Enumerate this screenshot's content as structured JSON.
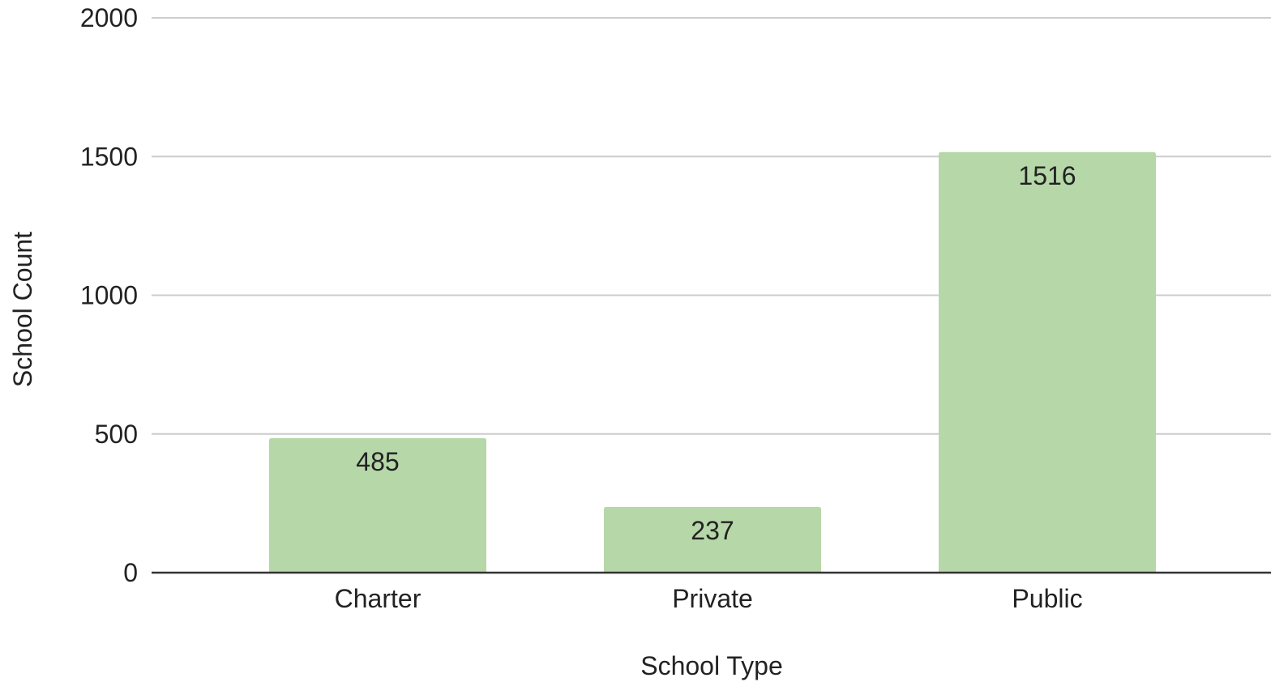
{
  "chart_data": {
    "type": "bar",
    "title": "",
    "xlabel": "School Type",
    "ylabel": "School Count",
    "categories": [
      "Charter",
      "Private",
      "Public"
    ],
    "values": [
      485,
      237,
      1516
    ],
    "data_labels": [
      "485",
      "237",
      "1516"
    ],
    "ylim": [
      0,
      2000
    ],
    "yticks": [
      0,
      500,
      1000,
      1500,
      2000
    ],
    "ytick_labels": [
      "0",
      "500",
      "1000",
      "1500",
      "2000"
    ],
    "grid": true,
    "legend": "none",
    "bar_color": "#b6d7a8",
    "gridline_color": "#cccccc",
    "baseline_color": "#333333",
    "text_color": "#222222"
  }
}
